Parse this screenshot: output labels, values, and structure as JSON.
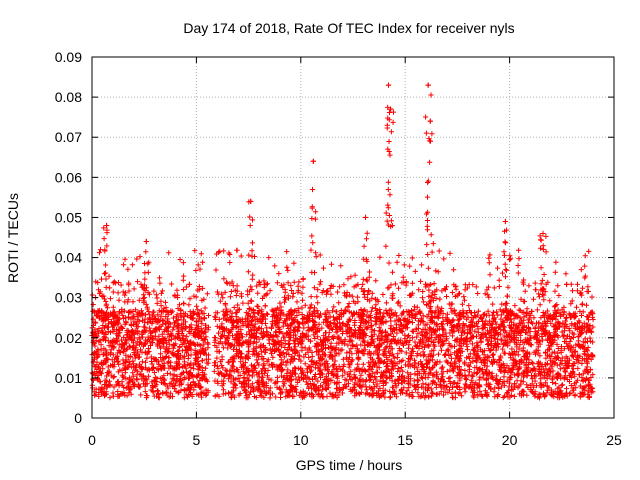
{
  "chart_data": {
    "type": "scatter",
    "title": "Day 174 of 2018, Rate Of TEC Index for receiver nyls",
    "xlabel": "GPS time / hours",
    "ylabel": "ROTI / TECUs",
    "xlim": [
      0,
      25
    ],
    "ylim": [
      0,
      0.09
    ],
    "x_ticks": [
      "0",
      "5",
      "10",
      "15",
      "20",
      "25"
    ],
    "y_ticks": [
      "0",
      "0.01",
      "0.02",
      "0.03",
      "0.04",
      "0.05",
      "0.06",
      "0.07",
      "0.08",
      "0.09"
    ],
    "grid": true,
    "marker": "+",
    "color": "#ff0000",
    "data_gaps_hours": [
      [
        5.6,
        5.85
      ]
    ],
    "series": [
      {
        "values_summary": "dense band of ROTI values mostly between 0.005 and 0.03 TECUs across 0-24 h",
        "peaks": [
          {
            "x": 0.7,
            "y": 0.048
          },
          {
            "x": 2.6,
            "y": 0.044
          },
          {
            "x": 7.6,
            "y": 0.054
          },
          {
            "x": 10.6,
            "y": 0.064
          },
          {
            "x": 13.1,
            "y": 0.05
          },
          {
            "x": 14.2,
            "y": 0.083
          },
          {
            "x": 14.3,
            "y": 0.077
          },
          {
            "x": 16.1,
            "y": 0.083
          },
          {
            "x": 16.2,
            "y": 0.074
          },
          {
            "x": 19.8,
            "y": 0.049
          },
          {
            "x": 21.6,
            "y": 0.046
          }
        ]
      }
    ]
  }
}
